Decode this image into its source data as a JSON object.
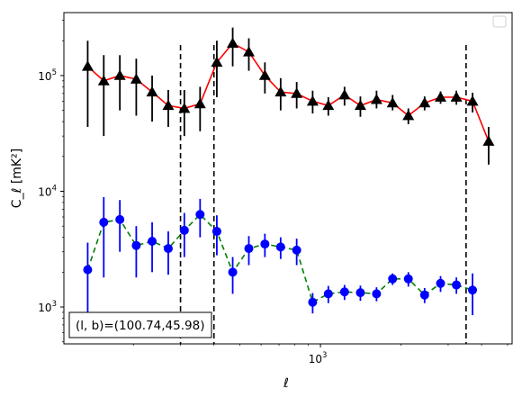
{
  "chart_data": {
    "type": "scatter",
    "xscale": "log",
    "yscale": "log",
    "xlim": [
      110,
      5200
    ],
    "ylim": [
      480,
      350000
    ],
    "xlabel": "ℓ",
    "ylabel": "C_ℓ [mK²]",
    "xticks": [
      {
        "value": 1000,
        "label": "10",
        "exp": "3"
      }
    ],
    "yticks": [
      {
        "value": 1000,
        "label": "10",
        "exp": "3"
      },
      {
        "value": 10000,
        "label": "10",
        "exp": "4"
      },
      {
        "value": 100000,
        "label": "10",
        "exp": "5"
      }
    ],
    "annotation": "(l, b)=(100.74,45.98)",
    "legend": "top-right (empty)",
    "vlines": [
      300,
      400,
      3500
    ],
    "series": [
      {
        "line_color": "#ff0000",
        "line_style": "solid",
        "marker": "triangle",
        "marker_color": "#000000",
        "error_color": "#000000",
        "points": [
          {
            "x": 135,
            "y": 120000,
            "lo": 36000,
            "hi": 200000
          },
          {
            "x": 155,
            "y": 90000,
            "lo": 30000,
            "hi": 150000
          },
          {
            "x": 178,
            "y": 100000,
            "lo": 50000,
            "hi": 150000
          },
          {
            "x": 205,
            "y": 93000,
            "lo": 45000,
            "hi": 140000
          },
          {
            "x": 235,
            "y": 72000,
            "lo": 40000,
            "hi": 100000
          },
          {
            "x": 270,
            "y": 55000,
            "lo": 36000,
            "hi": 75000
          },
          {
            "x": 310,
            "y": 52000,
            "lo": 30000,
            "hi": 75000
          },
          {
            "x": 355,
            "y": 57000,
            "lo": 33000,
            "hi": 80000
          },
          {
            "x": 410,
            "y": 130000,
            "lo": 65000,
            "hi": 200000
          },
          {
            "x": 470,
            "y": 190000,
            "lo": 120000,
            "hi": 260000
          },
          {
            "x": 540,
            "y": 160000,
            "lo": 110000,
            "hi": 210000
          },
          {
            "x": 620,
            "y": 100000,
            "lo": 70000,
            "hi": 130000
          },
          {
            "x": 710,
            "y": 72000,
            "lo": 50000,
            "hi": 95000
          },
          {
            "x": 815,
            "y": 70000,
            "lo": 52000,
            "hi": 88000
          },
          {
            "x": 935,
            "y": 60000,
            "lo": 47000,
            "hi": 74000
          },
          {
            "x": 1070,
            "y": 55000,
            "lo": 45000,
            "hi": 65000
          },
          {
            "x": 1230,
            "y": 68000,
            "lo": 55000,
            "hi": 80000
          },
          {
            "x": 1410,
            "y": 55000,
            "lo": 44000,
            "hi": 66000
          },
          {
            "x": 1620,
            "y": 62000,
            "lo": 52000,
            "hi": 74000
          },
          {
            "x": 1860,
            "y": 58000,
            "lo": 50000,
            "hi": 68000
          },
          {
            "x": 2130,
            "y": 45000,
            "lo": 38000,
            "hi": 52000
          },
          {
            "x": 2450,
            "y": 58000,
            "lo": 50000,
            "hi": 66000
          },
          {
            "x": 2810,
            "y": 65000,
            "lo": 57000,
            "hi": 73000
          },
          {
            "x": 3220,
            "y": 65000,
            "lo": 56000,
            "hi": 74000
          },
          {
            "x": 3700,
            "y": 60000,
            "lo": 48000,
            "hi": 71000
          },
          {
            "x": 4250,
            "y": 27000,
            "lo": 17000,
            "hi": 36000
          }
        ]
      },
      {
        "line_color": "#008000",
        "line_style": "dashed",
        "marker": "circle",
        "marker_color": "#0000ff",
        "error_color": "#0000ff",
        "points": [
          {
            "x": 135,
            "y": 2100,
            "lo": 700,
            "hi": 3600
          },
          {
            "x": 155,
            "y": 5400,
            "lo": 1800,
            "hi": 8900
          },
          {
            "x": 178,
            "y": 5700,
            "lo": 3000,
            "hi": 8400
          },
          {
            "x": 205,
            "y": 3400,
            "lo": 1800,
            "hi": 5000
          },
          {
            "x": 235,
            "y": 3700,
            "lo": 2000,
            "hi": 5400
          },
          {
            "x": 270,
            "y": 3200,
            "lo": 1900,
            "hi": 4500
          },
          {
            "x": 310,
            "y": 4600,
            "lo": 2700,
            "hi": 6500
          },
          {
            "x": 355,
            "y": 6300,
            "lo": 4000,
            "hi": 8600
          },
          {
            "x": 410,
            "y": 4500,
            "lo": 2800,
            "hi": 6200
          },
          {
            "x": 470,
            "y": 2000,
            "lo": 1300,
            "hi": 2700
          },
          {
            "x": 540,
            "y": 3200,
            "lo": 2300,
            "hi": 4100
          },
          {
            "x": 620,
            "y": 3500,
            "lo": 2700,
            "hi": 4300
          },
          {
            "x": 710,
            "y": 3300,
            "lo": 2600,
            "hi": 4000
          },
          {
            "x": 815,
            "y": 3100,
            "lo": 2300,
            "hi": 3900
          },
          {
            "x": 935,
            "y": 1100,
            "lo": 880,
            "hi": 1320
          },
          {
            "x": 1070,
            "y": 1300,
            "lo": 1080,
            "hi": 1520
          },
          {
            "x": 1230,
            "y": 1350,
            "lo": 1150,
            "hi": 1550
          },
          {
            "x": 1410,
            "y": 1330,
            "lo": 1130,
            "hi": 1530
          },
          {
            "x": 1620,
            "y": 1300,
            "lo": 1120,
            "hi": 1480
          },
          {
            "x": 1860,
            "y": 1750,
            "lo": 1550,
            "hi": 1950
          },
          {
            "x": 2130,
            "y": 1750,
            "lo": 1500,
            "hi": 2000
          },
          {
            "x": 2450,
            "y": 1270,
            "lo": 1080,
            "hi": 1460
          },
          {
            "x": 2810,
            "y": 1600,
            "lo": 1350,
            "hi": 1850
          },
          {
            "x": 3220,
            "y": 1550,
            "lo": 1300,
            "hi": 1800
          },
          {
            "x": 3700,
            "y": 1400,
            "lo": 850,
            "hi": 1950
          }
        ]
      }
    ]
  }
}
